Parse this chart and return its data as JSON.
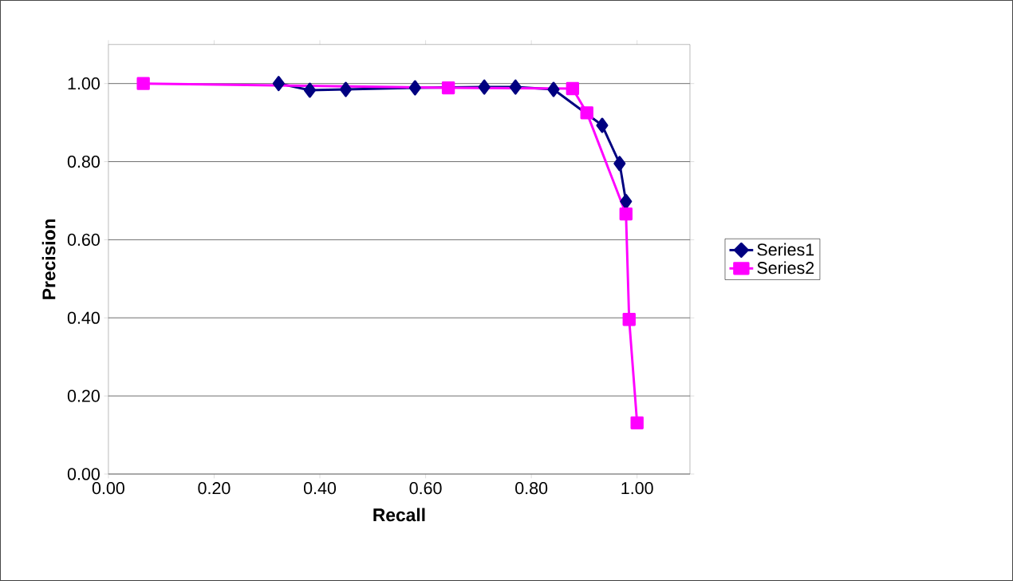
{
  "chart_data": {
    "type": "line",
    "xlabel": "Recall",
    "ylabel": "Precision",
    "xlim": [
      0,
      1.1
    ],
    "ylim": [
      0,
      1.1
    ],
    "xticks": [
      {
        "value": 0,
        "label": "0.00"
      },
      {
        "value": 0.2,
        "label": "0.20"
      },
      {
        "value": 0.4,
        "label": "0.40"
      },
      {
        "value": 0.6,
        "label": "0.60"
      },
      {
        "value": 0.8,
        "label": "0.80"
      },
      {
        "value": 1,
        "label": "1.00"
      }
    ],
    "yticks": [
      {
        "value": 0,
        "label": "0.00"
      },
      {
        "value": 0.2,
        "label": "0.20"
      },
      {
        "value": 0.4,
        "label": "0.40"
      },
      {
        "value": 0.6,
        "label": "0.60"
      },
      {
        "value": 0.8,
        "label": "0.80"
      },
      {
        "value": 1,
        "label": "1.00"
      }
    ],
    "grid": "y",
    "legend": "right",
    "series": [
      {
        "name": "Series1",
        "color": "#000080",
        "marker": "diamond",
        "x": [
          0.322,
          0.381,
          0.449,
          0.58,
          0.711,
          0.77,
          0.842,
          0.934,
          0.967,
          0.979
        ],
        "values": [
          1.0,
          0.983,
          0.985,
          0.989,
          0.991,
          0.991,
          0.985,
          0.893,
          0.795,
          0.698
        ]
      },
      {
        "name": "Series2",
        "color": "#ff00ff",
        "marker": "square",
        "x": [
          0.066,
          0.643,
          0.878,
          0.905,
          0.979,
          0.985,
          1.0
        ],
        "values": [
          1.0,
          0.989,
          0.987,
          0.925,
          0.666,
          0.396,
          0.131
        ]
      }
    ]
  }
}
